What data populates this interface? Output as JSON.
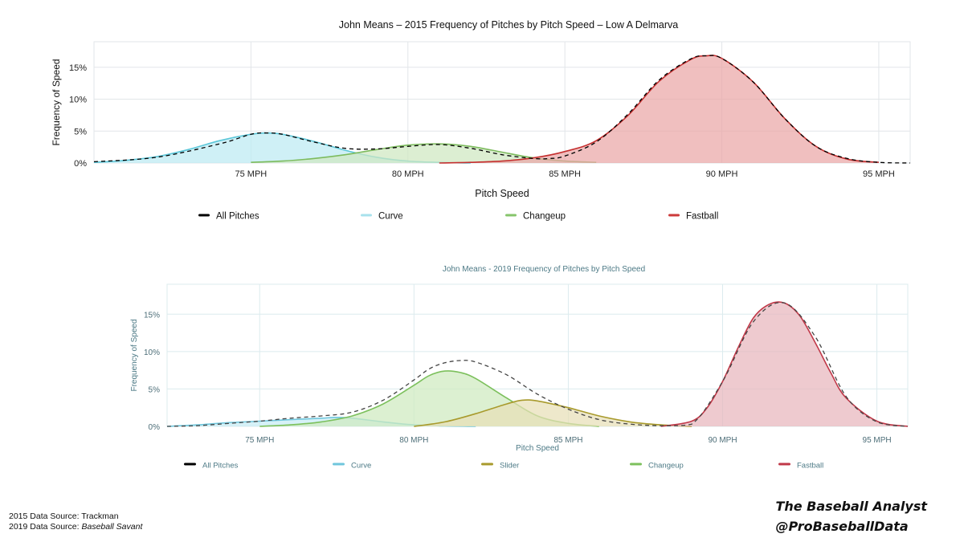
{
  "chart_data": [
    {
      "type": "area",
      "title": "John Means – 2015 Frequency of Pitches by Pitch Speed – Low A Delmarva",
      "xlabel": "Pitch Speed",
      "ylabel": "Frequency of Speed",
      "xlim": [
        70,
        96
      ],
      "ylim": [
        0,
        0.19
      ],
      "xticks": [
        75,
        80,
        85,
        90,
        95
      ],
      "xtick_labels": [
        "75 MPH",
        "80 MPH",
        "85 MPH",
        "90 MPH",
        "95 MPH"
      ],
      "yticks": [
        0,
        0.05,
        0.1,
        0.15
      ],
      "ytick_labels": [
        "0%",
        "5%",
        "10%",
        "15%"
      ],
      "grid": true,
      "legend_position": "bottom",
      "legend": [
        {
          "label": "All Pitches",
          "color": "#000000"
        },
        {
          "label": "Curve",
          "color": "#a8e2ec"
        },
        {
          "label": "Changeup",
          "color": "#86c46b"
        },
        {
          "label": "Fastball",
          "color": "#cc3a3a"
        }
      ],
      "series": [
        {
          "name": "All Pitches",
          "color": "#000000",
          "dashed": true,
          "filled": false,
          "x": [
            70,
            72,
            74,
            75,
            75.5,
            76,
            77,
            78,
            79,
            80,
            81,
            82,
            83,
            84,
            84.5,
            85,
            86,
            87,
            88,
            89,
            89.5,
            90,
            91,
            92,
            93,
            94,
            95,
            96
          ],
          "y": [
            0.002,
            0.009,
            0.03,
            0.045,
            0.047,
            0.045,
            0.033,
            0.023,
            0.022,
            0.026,
            0.029,
            0.023,
            0.013,
            0.007,
            0.007,
            0.011,
            0.033,
            0.076,
            0.13,
            0.163,
            0.168,
            0.164,
            0.127,
            0.07,
            0.026,
            0.007,
            0.001,
            0.0
          ]
        },
        {
          "name": "Curve",
          "color": "#5cc7d9",
          "fill": "#bdeaf2",
          "filled": true,
          "x": [
            70,
            71,
            72,
            73,
            74,
            75,
            75.5,
            76,
            77,
            78,
            79,
            80,
            81,
            82
          ],
          "y": [
            0.001,
            0.004,
            0.01,
            0.021,
            0.035,
            0.045,
            0.047,
            0.045,
            0.034,
            0.02,
            0.009,
            0.003,
            0.001,
            0.0
          ]
        },
        {
          "name": "Changeup",
          "color": "#7dbb5e",
          "fill": "#cfe8c1",
          "filled": true,
          "x": [
            75,
            76,
            77,
            78,
            79,
            80,
            81,
            82,
            83,
            84,
            85,
            86
          ],
          "y": [
            0.001,
            0.003,
            0.007,
            0.013,
            0.021,
            0.028,
            0.03,
            0.026,
            0.017,
            0.008,
            0.003,
            0.001
          ]
        },
        {
          "name": "Fastball",
          "color": "#c53030",
          "fill": "#eaa6a6",
          "filled": true,
          "x": [
            81,
            82,
            83,
            84,
            85,
            86,
            87,
            88,
            89,
            89.5,
            90,
            91,
            92,
            93,
            94,
            95
          ],
          "y": [
            0.0,
            0.001,
            0.003,
            0.008,
            0.018,
            0.035,
            0.074,
            0.128,
            0.162,
            0.168,
            0.164,
            0.127,
            0.07,
            0.026,
            0.006,
            0.001
          ]
        }
      ]
    },
    {
      "type": "area",
      "title": "John Means - 2019 Frequency of Pitches by Pitch Speed",
      "xlabel": "Pitch Speed",
      "ylabel": "Frequency of Speed",
      "xlim": [
        72,
        96
      ],
      "ylim": [
        0,
        0.19
      ],
      "xticks": [
        75,
        80,
        85,
        90,
        95
      ],
      "xtick_labels": [
        "75 MPH",
        "80 MPH",
        "85 MPH",
        "90 MPH",
        "95 MPH"
      ],
      "yticks": [
        0,
        0.05,
        0.1,
        0.15
      ],
      "ytick_labels": [
        "0%",
        "5%",
        "10%",
        "15%"
      ],
      "grid": true,
      "legend_position": "bottom",
      "legend": [
        {
          "label": "All Pitches",
          "color": "#000000"
        },
        {
          "label": "Curve",
          "color": "#6fc6dc"
        },
        {
          "label": "Slider",
          "color": "#a89a2c"
        },
        {
          "label": "Changeup",
          "color": "#7cc05c"
        },
        {
          "label": "Fastball",
          "color": "#c03848"
        }
      ],
      "series": [
        {
          "name": "All Pitches",
          "color": "#444444",
          "dashed": true,
          "filled": false,
          "x": [
            72,
            73,
            74,
            75,
            76,
            77,
            78,
            79,
            80,
            80.5,
            81,
            81.5,
            82,
            83,
            84,
            85,
            86,
            87,
            88,
            89,
            90,
            91,
            92,
            93,
            94,
            95,
            96
          ],
          "y": [
            0.0,
            0.001,
            0.004,
            0.007,
            0.011,
            0.014,
            0.019,
            0.035,
            0.062,
            0.077,
            0.085,
            0.088,
            0.086,
            0.069,
            0.043,
            0.023,
            0.009,
            0.003,
            0.001,
            0.003,
            0.06,
            0.14,
            0.165,
            0.12,
            0.04,
            0.006,
            0.0
          ]
        },
        {
          "name": "Curve",
          "color": "#6fc6dc",
          "fill": "#c6ebf4",
          "filled": true,
          "x": [
            72,
            73,
            74,
            75,
            76,
            77,
            77.5,
            78,
            79,
            80,
            81,
            82
          ],
          "y": [
            0.0,
            0.002,
            0.005,
            0.007,
            0.009,
            0.011,
            0.012,
            0.011,
            0.006,
            0.002,
            0.0005,
            0.0
          ]
        },
        {
          "name": "Changeup",
          "color": "#7cc05c",
          "fill": "#cfeabf",
          "filled": true,
          "x": [
            75,
            76,
            77,
            78,
            79,
            80,
            80.5,
            81,
            81.5,
            82,
            83,
            84,
            85,
            86
          ],
          "y": [
            0.0,
            0.002,
            0.006,
            0.014,
            0.03,
            0.055,
            0.068,
            0.074,
            0.072,
            0.064,
            0.038,
            0.014,
            0.004,
            0.0
          ]
        },
        {
          "name": "Slider",
          "color": "#a89a2c",
          "fill": "#e7dfb7",
          "filled": true,
          "x": [
            80,
            81,
            82,
            83,
            83.5,
            84,
            85,
            86,
            87,
            88,
            89
          ],
          "y": [
            0.0,
            0.006,
            0.017,
            0.03,
            0.035,
            0.034,
            0.025,
            0.014,
            0.006,
            0.002,
            0.0
          ]
        },
        {
          "name": "Fastball",
          "color": "#c03848",
          "fill": "#e8b6bd",
          "filled": true,
          "x": [
            88,
            89,
            89.5,
            90,
            90.5,
            91,
            91.5,
            92,
            92.5,
            93,
            93.5,
            94,
            95,
            96
          ],
          "y": [
            0.0,
            0.007,
            0.025,
            0.06,
            0.105,
            0.145,
            0.163,
            0.165,
            0.148,
            0.112,
            0.072,
            0.038,
            0.007,
            0.0
          ]
        }
      ]
    }
  ],
  "sources": {
    "line1": "2015 Data Source: Trackman",
    "line2_prefix": "2019 Data Source: ",
    "line2_name": "Baseball Savant"
  },
  "branding": {
    "line1": "The Baseball Analyst",
    "line2": "@ProBaseballData"
  }
}
